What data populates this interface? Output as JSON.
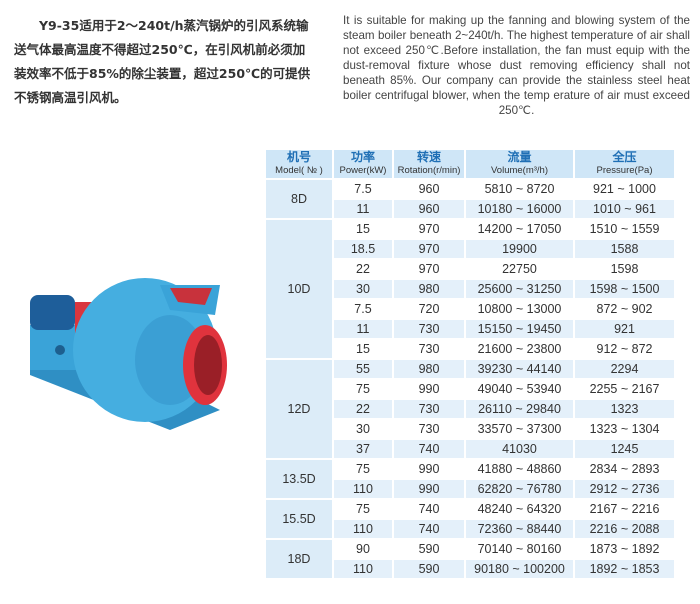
{
  "intro_zh": "Y9-35适用于2～240t/h蒸汽锅炉的引风系统输送气体最高温度不得超过250℃，在引风机前必须加装效率不低于85%的除尘装置，超过250℃的可提供不锈钢高温引风机。",
  "intro_en": "It is suitable for making up the fanning and blowing system of the steam boiler beneath 2~240t/h. The highest temperature of air shall not exceed 250℃.Before installation, the fan must equip with the dust-removal fixture whose dust removing efficiency shall not beneath 85%. Our company can provide the stainless steel heat boiler centrifugal blower, when the temp erature of air must exceed 250℃.",
  "colors": {
    "header_bg": "#cfe6f7",
    "header_text": "#1f6fb5",
    "row_alt": "#e4f0fa"
  },
  "table": {
    "headers": [
      {
        "zh": "机号",
        "en": "Model( № )"
      },
      {
        "zh": "功率",
        "en": "Power(kW)"
      },
      {
        "zh": "转速",
        "en": "Rotation(r/min)"
      },
      {
        "zh": "流量",
        "en": "Volume(m³/h)"
      },
      {
        "zh": "全压",
        "en": "Pressure(Pa)"
      }
    ],
    "groups": [
      {
        "model": "8D",
        "rows": [
          [
            "7.5",
            "960",
            "5810 ~ 8720",
            "921 ~ 1000"
          ],
          [
            "11",
            "960",
            "10180 ~ 16000",
            "1010 ~ 961"
          ]
        ]
      },
      {
        "model": "10D",
        "rows": [
          [
            "15",
            "970",
            "14200 ~ 17050",
            "1510 ~ 1559"
          ],
          [
            "18.5",
            "970",
            "19900",
            "1588"
          ],
          [
            "22",
            "970",
            "22750",
            "1598"
          ],
          [
            "30",
            "980",
            "25600 ~ 31250",
            "1598 ~ 1500"
          ],
          [
            "7.5",
            "720",
            "10800 ~ 13000",
            "872 ~ 902"
          ],
          [
            "11",
            "730",
            "15150 ~ 19450",
            "921"
          ],
          [
            "15",
            "730",
            "21600 ~ 23800",
            "912 ~ 872"
          ]
        ]
      },
      {
        "model": "12D",
        "rows": [
          [
            "55",
            "980",
            "39230 ~ 44140",
            "2294"
          ],
          [
            "75",
            "990",
            "49040 ~ 53940",
            "2255 ~ 2167"
          ],
          [
            "22",
            "730",
            "26110 ~ 29840",
            "1323"
          ],
          [
            "30",
            "730",
            "33570 ~ 37300",
            "1323 ~ 1304"
          ],
          [
            "37",
            "740",
            "41030",
            "1245"
          ]
        ]
      },
      {
        "model": "13.5D",
        "rows": [
          [
            "75",
            "990",
            "41880 ~ 48860",
            "2834 ~ 2893"
          ],
          [
            "110",
            "990",
            "62820 ~ 76780",
            "2912 ~ 2736"
          ]
        ]
      },
      {
        "model": "15.5D",
        "rows": [
          [
            "75",
            "740",
            "48240 ~ 64320",
            "2167 ~ 2216"
          ],
          [
            "110",
            "740",
            "72360 ~ 88440",
            "2216 ~ 2088"
          ]
        ]
      },
      {
        "model": "18D",
        "rows": [
          [
            "90",
            "590",
            "70140 ~ 80160",
            "1873 ~ 1892"
          ],
          [
            "110",
            "590",
            "90180 ~ 100200",
            "1892 ~ 1853"
          ]
        ]
      }
    ]
  }
}
